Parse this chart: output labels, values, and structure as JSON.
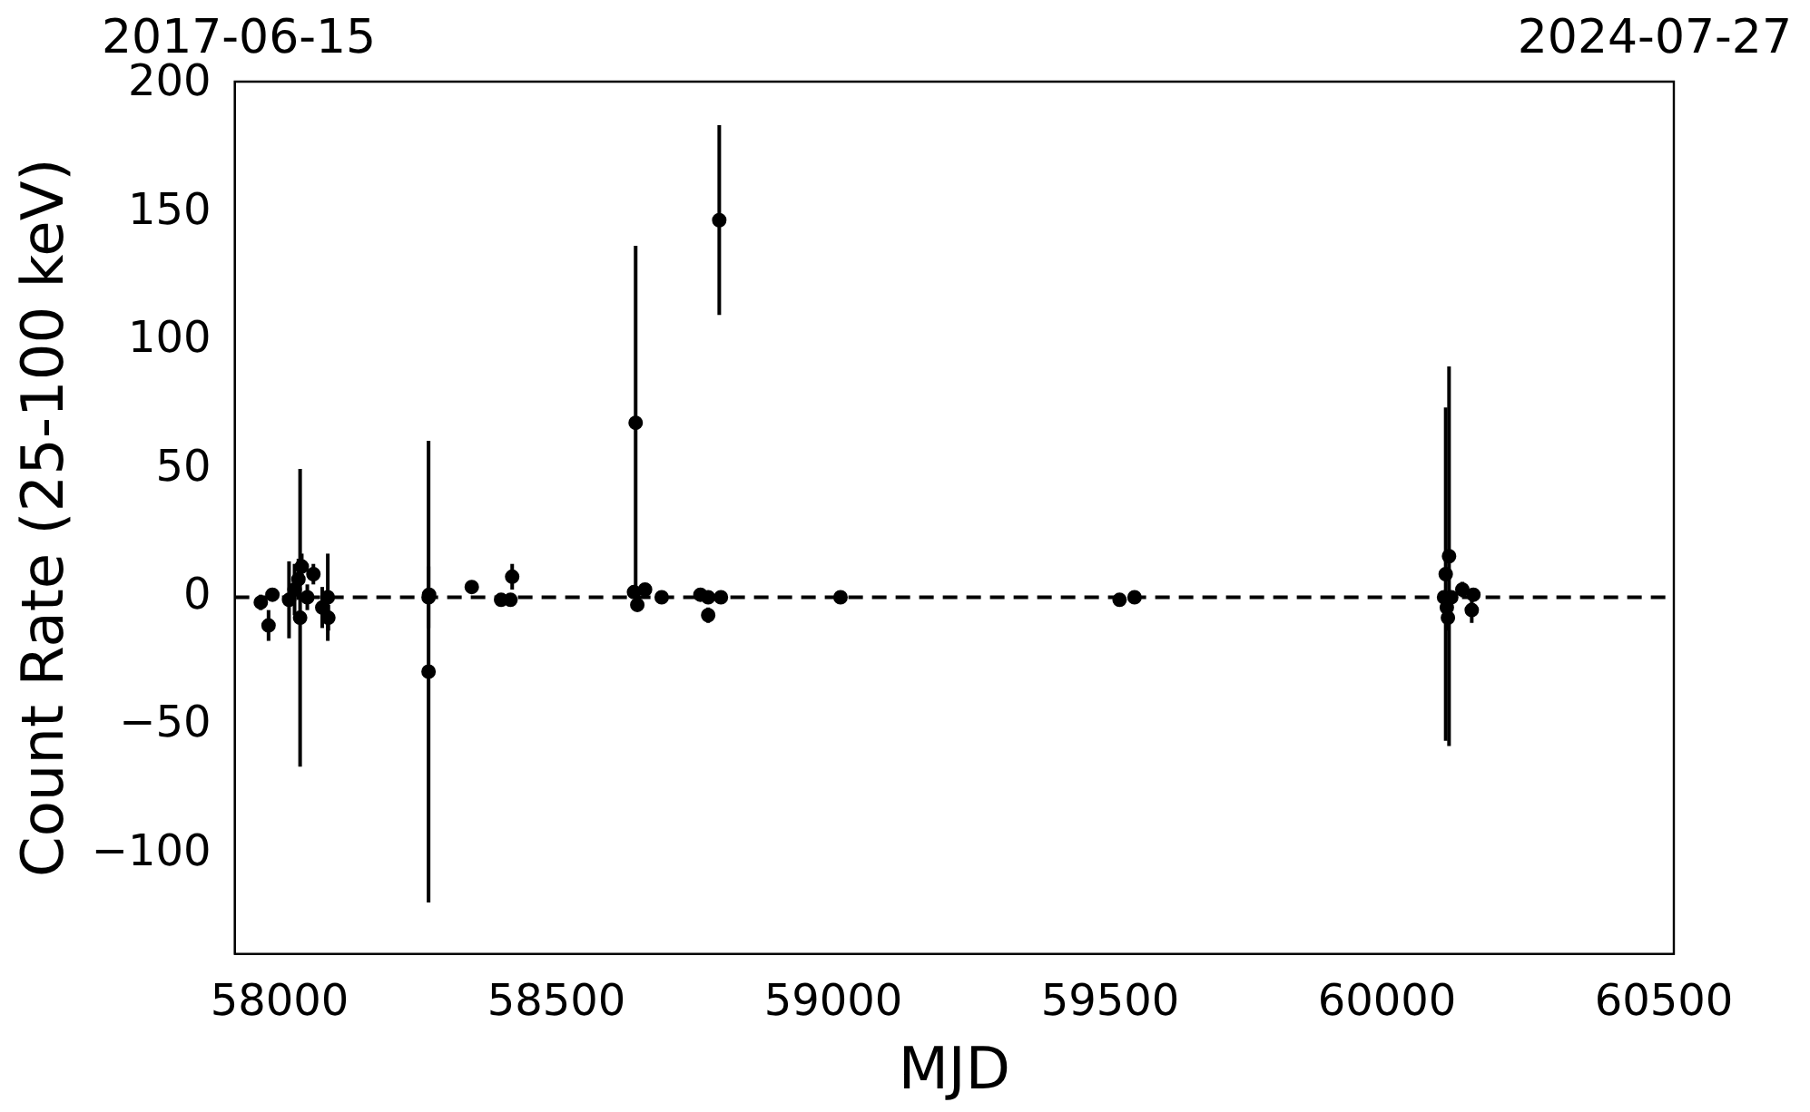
{
  "chart_data": {
    "type": "scatter",
    "xlabel": "MJD",
    "ylabel": "Count Rate (25-100 keV)",
    "annotations": [
      "2017-06-15",
      "2024-07-27"
    ],
    "xlim": [
      57919,
      60518
    ],
    "xticks": [
      58000,
      58500,
      59000,
      59500,
      60000,
      60500
    ],
    "ylim": [
      -139,
      201
    ],
    "yticks": [
      {
        "value": -100,
        "label": "−100"
      },
      {
        "value": -50,
        "label": "−50"
      },
      0,
      50,
      100,
      150,
      200
    ],
    "grid": false,
    "legend": false,
    "marker": "circle",
    "ref_lines": [
      {
        "axis": "y",
        "value": 0,
        "label": null,
        "color": "#000000",
        "line_style": "dashed"
      }
    ],
    "series": [
      {
        "color": "#000000",
        "x": [
          57966,
          57980,
          57987,
          58017,
          58027,
          58034,
          58037,
          58040,
          58050,
          58061,
          58077,
          58084,
          58087,
          58088,
          58269,
          58269,
          58270,
          58347,
          58400,
          58417,
          58420,
          58640,
          58643,
          58646,
          58660,
          58690,
          58760,
          58774,
          58774,
          58787,
          58794,
          58797,
          59013,
          59514,
          59517,
          59544,
          60103,
          60106,
          60108,
          60110,
          60112,
          60116,
          60126,
          60136,
          60153,
          60156
        ],
        "values": [
          -2,
          -11,
          1,
          -1,
          3,
          7,
          -8,
          12,
          0,
          9,
          -4,
          null,
          0,
          -8,
          -29,
          0,
          1,
          4,
          -1,
          -1,
          8,
          2,
          68,
          -3,
          3,
          0,
          1,
          0,
          -7,
          null,
          147,
          0,
          0,
          null,
          -1,
          0,
          0,
          9,
          -4,
          -8,
          16,
          0,
          null,
          3,
          -5,
          1
        ],
        "errors": [
          3,
          6,
          null,
          15,
          10,
          8,
          58,
          5,
          5,
          4,
          8,
          null,
          17,
          5,
          90,
          12,
          null,
          2,
          null,
          null,
          5,
          null,
          69,
          null,
          null,
          2,
          null,
          null,
          3,
          null,
          37,
          null,
          null,
          null,
          null,
          null,
          null,
          65,
          null,
          5,
          74,
          null,
          null,
          3,
          5,
          null
        ]
      }
    ]
  }
}
